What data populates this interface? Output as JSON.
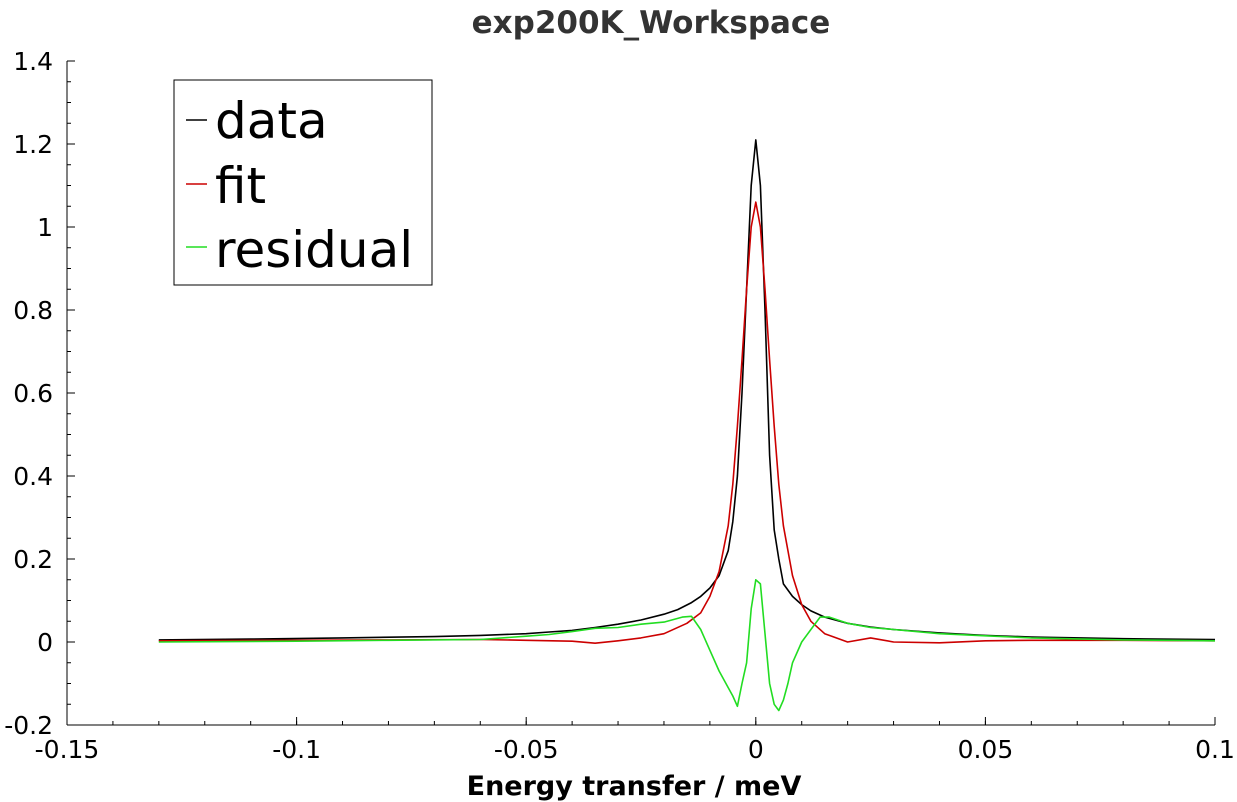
{
  "chart_data": {
    "type": "line",
    "title": "exp200K_Workspace",
    "xlabel": "Energy transfer / meV",
    "ylabel": "",
    "xlim": [
      -0.15,
      0.1
    ],
    "ylim": [
      -0.2,
      1.4
    ],
    "x_ticks": [
      -0.15,
      -0.1,
      -0.05,
      0,
      0.05,
      0.1
    ],
    "x_tick_labels": [
      "-0.15",
      "-0.1",
      "-0.05",
      "0",
      "0.05",
      "0.1"
    ],
    "y_ticks": [
      -0.2,
      0,
      0.2,
      0.4,
      0.6,
      0.8,
      1,
      1.2,
      1.4
    ],
    "y_tick_labels": [
      "-0.2",
      "0",
      "0.2",
      "0.4",
      "0.6",
      "0.8",
      "1",
      "1.2",
      "1.4"
    ],
    "grid": false,
    "legend_position": "top-left",
    "series": [
      {
        "name": "data",
        "color": "#000000",
        "x": [
          -0.13,
          -0.11,
          -0.09,
          -0.07,
          -0.06,
          -0.05,
          -0.045,
          -0.04,
          -0.035,
          -0.03,
          -0.025,
          -0.02,
          -0.017,
          -0.014,
          -0.012,
          -0.01,
          -0.008,
          -0.006,
          -0.005,
          -0.004,
          -0.003,
          -0.002,
          -0.001,
          0,
          0.001,
          0.002,
          0.003,
          0.004,
          0.005,
          0.006,
          0.008,
          0.01,
          0.012,
          0.015,
          0.02,
          0.025,
          0.03,
          0.04,
          0.05,
          0.06,
          0.08,
          0.1
        ],
        "y": [
          0.005,
          0.007,
          0.01,
          0.013,
          0.016,
          0.02,
          0.024,
          0.028,
          0.035,
          0.043,
          0.053,
          0.067,
          0.078,
          0.095,
          0.11,
          0.13,
          0.16,
          0.22,
          0.29,
          0.4,
          0.6,
          0.85,
          1.1,
          1.21,
          1.1,
          0.8,
          0.45,
          0.27,
          0.2,
          0.14,
          0.11,
          0.09,
          0.075,
          0.06,
          0.045,
          0.036,
          0.03,
          0.022,
          0.016,
          0.012,
          0.008,
          0.006
        ]
      },
      {
        "name": "fit",
        "color": "#cc0000",
        "x": [
          -0.13,
          -0.1,
          -0.08,
          -0.06,
          -0.05,
          -0.04,
          -0.035,
          -0.03,
          -0.025,
          -0.02,
          -0.015,
          -0.012,
          -0.01,
          -0.008,
          -0.006,
          -0.005,
          -0.004,
          -0.003,
          -0.002,
          -0.001,
          0,
          0.001,
          0.002,
          0.003,
          0.004,
          0.005,
          0.006,
          0.008,
          0.01,
          0.012,
          0.015,
          0.02,
          0.025,
          0.03,
          0.04,
          0.05,
          0.06,
          0.08,
          0.1
        ],
        "y": [
          0.003,
          0.004,
          0.005,
          0.006,
          0.004,
          0.002,
          -0.003,
          0.003,
          0.01,
          0.02,
          0.045,
          0.07,
          0.11,
          0.17,
          0.28,
          0.38,
          0.52,
          0.68,
          0.85,
          1.0,
          1.06,
          1.0,
          0.85,
          0.68,
          0.52,
          0.38,
          0.28,
          0.16,
          0.09,
          0.05,
          0.02,
          0.0,
          0.01,
          0.0,
          -0.002,
          0.003,
          0.004,
          0.004,
          0.003
        ]
      },
      {
        "name": "residual",
        "color": "#22dd22",
        "x": [
          -0.13,
          -0.1,
          -0.08,
          -0.06,
          -0.05,
          -0.045,
          -0.04,
          -0.035,
          -0.03,
          -0.025,
          -0.02,
          -0.016,
          -0.014,
          -0.012,
          -0.01,
          -0.008,
          -0.006,
          -0.005,
          -0.004,
          -0.003,
          -0.002,
          -0.001,
          0,
          0.001,
          0.002,
          0.003,
          0.004,
          0.005,
          0.006,
          0.007,
          0.008,
          0.01,
          0.012,
          0.014,
          0.016,
          0.02,
          0.025,
          0.03,
          0.04,
          0.05,
          0.06,
          0.08,
          0.1
        ],
        "y": [
          0.0,
          0.002,
          0.004,
          0.006,
          0.014,
          0.018,
          0.025,
          0.033,
          0.035,
          0.043,
          0.048,
          0.06,
          0.062,
          0.03,
          -0.02,
          -0.07,
          -0.11,
          -0.13,
          -0.155,
          -0.1,
          -0.05,
          0.08,
          0.15,
          0.14,
          0.02,
          -0.1,
          -0.15,
          -0.165,
          -0.14,
          -0.1,
          -0.05,
          0.0,
          0.03,
          0.06,
          0.06,
          0.045,
          0.035,
          0.03,
          0.02,
          0.015,
          0.01,
          0.005,
          0.003
        ]
      }
    ]
  }
}
